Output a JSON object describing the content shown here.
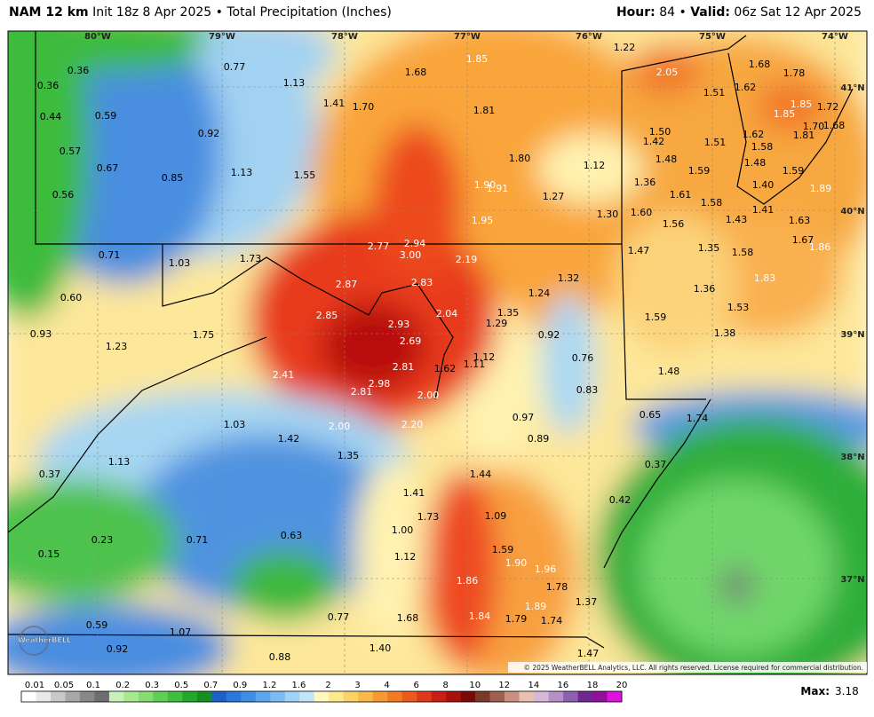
{
  "header": {
    "model": "NAM 12 km",
    "info": "Init 18z 8 Apr 2025 • Total Precipitation (Inches)",
    "hour_label": "Hour:",
    "hour": "84 •",
    "valid_label": "Valid:",
    "valid": "06z Sat 12 Apr 2025"
  },
  "map": {
    "longitudes": [
      "80°W",
      "79°W",
      "78°W",
      "77°W",
      "76°W",
      "75°W",
      "74°W"
    ],
    "latitudes": [
      "41°N",
      "40°N",
      "39°N",
      "38°N",
      "37°N"
    ],
    "labels": [
      "0.36",
      "0.36",
      "0.44",
      "0.59",
      "0.57",
      "0.67",
      "0.56",
      "0.77",
      "1.13",
      "0.92",
      "0.85",
      "1.13",
      "1.41",
      "1.70",
      "1.55",
      "1.68",
      "1.85",
      "1.81",
      "1.22",
      "2.05",
      "1.68",
      "1.78",
      "1.51",
      "1.62",
      "1.85",
      "1.72",
      "1.85",
      "1.70",
      "1.68",
      "1.81",
      "1.50",
      "1.42",
      "1.51",
      "1.62",
      "1.58",
      "1.80",
      "1.12",
      "1.48",
      "1.59",
      "1.48",
      "1.59",
      "1.90",
      "1.91",
      "1.27",
      "1.36",
      "1.61",
      "1.58",
      "1.40",
      "1.89",
      "1.95",
      "1.30",
      "1.60",
      "1.56",
      "1.43",
      "1.41",
      "1.63",
      "0.71",
      "1.03",
      "1.73",
      "2.77",
      "2.94",
      "3.00",
      "2.19",
      "1.47",
      "1.35",
      "1.58",
      "1.67",
      "1.86",
      "2.87",
      "2.83",
      "1.24",
      "1.32",
      "1.83",
      "0.60",
      "2.85",
      "2.04",
      "1.35",
      "1.36",
      "1.53",
      "0.93",
      "1.75",
      "2.93",
      "1.29",
      "0.92",
      "1.59",
      "1.38",
      "1.23",
      "2.69",
      "1.12",
      "0.76",
      "1.62",
      "1.11",
      "2.81",
      "2.41",
      "2.98",
      "2.81",
      "0.83",
      "1.48",
      "2.00",
      "0.97",
      "0.65",
      "1.74",
      "1.03",
      "2.00",
      "2.20",
      "1.42",
      "0.89",
      "1.13",
      "1.35",
      "0.37",
      "1.44",
      "0.37",
      "1.41",
      "0.42",
      "1.73",
      "1.09",
      "0.23",
      "0.71",
      "0.63",
      "1.00",
      "1.59",
      "1.90",
      "1.96",
      "0.15",
      "1.12",
      "1.86",
      "1.78",
      "1.89",
      "1.37",
      "1.84",
      "1.79",
      "1.74",
      "0.77",
      "1.68",
      "0.59",
      "1.07",
      "0.92",
      "1.40",
      "0.88",
      "1.47"
    ],
    "copyright": "© 2025 WeatherBELL Analytics, LLC. All rights reserved. License required for commercial distribution.",
    "logo": "WeatherBELL"
  },
  "legend": {
    "ticks": [
      "0.01",
      "0.05",
      "0.1",
      "0.2",
      "0.3",
      "0.5",
      "0.7",
      "0.9",
      "1.2",
      "1.6",
      "2",
      "3",
      "4",
      "6",
      "8",
      "10",
      "12",
      "14",
      "16",
      "18",
      "20"
    ],
    "max_label": "Max:",
    "max": "3.18"
  }
}
